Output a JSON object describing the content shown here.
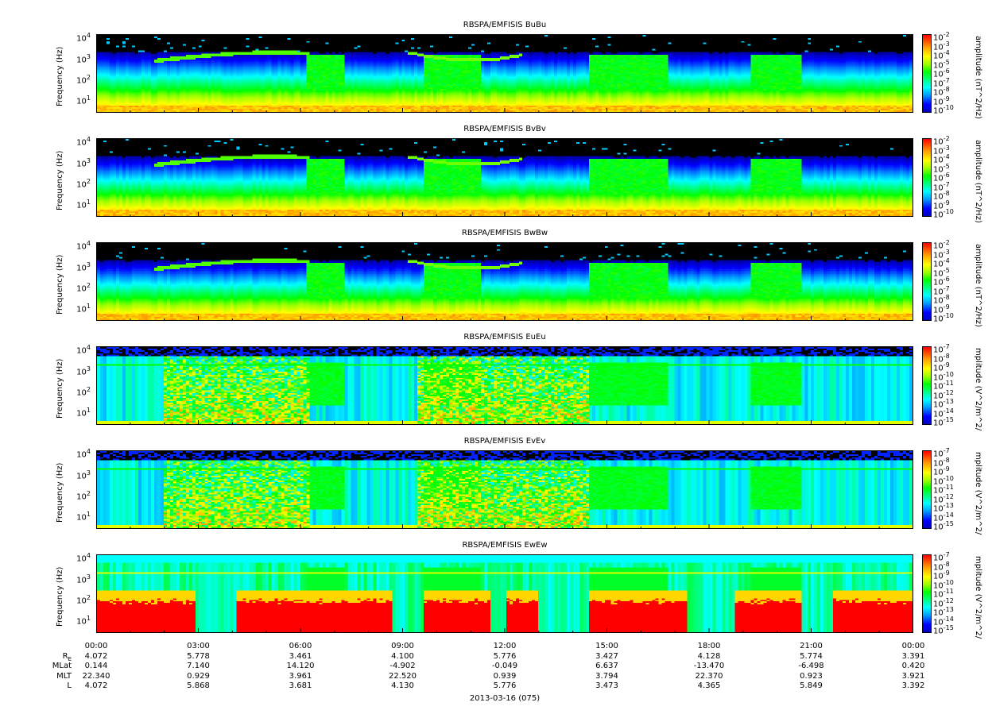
{
  "panels": [
    {
      "title": "RBSPA/EMFISIS  BuBu",
      "ylabel": "Frequency (Hz)",
      "cbar_label": "amplitude (nT^2/Hz)",
      "cbar_ticks": [
        "-2",
        "-3",
        "-4",
        "-5",
        "-6",
        "-7",
        "-8",
        "-9",
        "-10"
      ],
      "field": "B"
    },
    {
      "title": "RBSPA/EMFISIS  BvBv",
      "ylabel": "Frequency (Hz)",
      "cbar_label": "amplitude (nT^2/Hz)",
      "cbar_ticks": [
        "-2",
        "-3",
        "-4",
        "-5",
        "-6",
        "-7",
        "-8",
        "-9",
        "-10"
      ],
      "field": "B"
    },
    {
      "title": "RBSPA/EMFISIS  BwBw",
      "ylabel": "Frequency (Hz)",
      "cbar_label": "amplitude (nT^2/Hz)",
      "cbar_ticks": [
        "-2",
        "-3",
        "-4",
        "-5",
        "-6",
        "-7",
        "-8",
        "-9",
        "-10"
      ],
      "field": "B"
    },
    {
      "title": "RBSPA/EMFISIS  EuEu",
      "ylabel": "Frequency (Hz)",
      "cbar_label": "mplitude (V^2/m^2/",
      "cbar_ticks": [
        "-7",
        "-8",
        "-9",
        "-10",
        "-11",
        "-12",
        "-13",
        "-14",
        "-15"
      ],
      "field": "E"
    },
    {
      "title": "RBSPA/EMFISIS  EvEv",
      "ylabel": "Frequency (Hz)",
      "cbar_label": "mplitude (V^2/m^2/",
      "cbar_ticks": [
        "-7",
        "-8",
        "-9",
        "-10",
        "-11",
        "-12",
        "-13",
        "-14",
        "-15"
      ],
      "field": "E"
    },
    {
      "title": "RBSPA/EMFISIS  EwEw",
      "ylabel": "Frequency (Hz)",
      "cbar_label": "mplitude (V^2/m^2/",
      "cbar_ticks": [
        "-7",
        "-8",
        "-9",
        "-10",
        "-11",
        "-12",
        "-13",
        "-14",
        "-15"
      ],
      "field": "Ew"
    }
  ],
  "y_ticks": [
    "4",
    "3",
    "2",
    "1"
  ],
  "x_ticks": [
    "00:00",
    "03:00",
    "06:00",
    "09:00",
    "12:00",
    "15:00",
    "18:00",
    "21:00",
    "00:00"
  ],
  "ephemeris": {
    "labels": [
      "R",
      "MLat",
      "MLT",
      "L"
    ],
    "re_subscript": "E",
    "rows": [
      [
        "4.072",
        "5.778",
        "3.461",
        "4.100",
        "5.776",
        "3.427",
        "4.128",
        "5.774",
        "3.391"
      ],
      [
        "0.144",
        "7.140",
        "14.120",
        "-4.902",
        "-0.049",
        "6.637",
        "-13.470",
        "-6.498",
        "0.420"
      ],
      [
        "22.340",
        "0.929",
        "3.961",
        "22.520",
        "0.939",
        "3.794",
        "22.370",
        "0.923",
        "3.921"
      ],
      [
        "4.072",
        "5.868",
        "3.681",
        "4.130",
        "5.776",
        "3.473",
        "4.365",
        "5.849",
        "3.392"
      ]
    ]
  },
  "date": "2013-03-16 (075)",
  "chart_data": [
    {
      "type": "heatmap",
      "title": "RBSPA/EMFISIS  BuBu",
      "ylabel": "Frequency (Hz)",
      "y_scale": "log",
      "ylim": [
        2,
        10000
      ],
      "x": [
        "00:00",
        "03:00",
        "06:00",
        "09:00",
        "12:00",
        "15:00",
        "18:00",
        "21:00",
        "00:00"
      ],
      "colorbar": {
        "label": "amplitude (nT^2/Hz)",
        "scale": "log",
        "range": [
          1e-10,
          0.01
        ]
      }
    },
    {
      "type": "heatmap",
      "title": "RBSPA/EMFISIS  BvBv",
      "ylabel": "Frequency (Hz)",
      "y_scale": "log",
      "ylim": [
        2,
        10000
      ],
      "x": [
        "00:00",
        "03:00",
        "06:00",
        "09:00",
        "12:00",
        "15:00",
        "18:00",
        "21:00",
        "00:00"
      ],
      "colorbar": {
        "label": "amplitude (nT^2/Hz)",
        "scale": "log",
        "range": [
          1e-10,
          0.01
        ]
      }
    },
    {
      "type": "heatmap",
      "title": "RBSPA/EMFISIS  BwBw",
      "ylabel": "Frequency (Hz)",
      "y_scale": "log",
      "ylim": [
        2,
        10000
      ],
      "x": [
        "00:00",
        "03:00",
        "06:00",
        "09:00",
        "12:00",
        "15:00",
        "18:00",
        "21:00",
        "00:00"
      ],
      "colorbar": {
        "label": "amplitude (nT^2/Hz)",
        "scale": "log",
        "range": [
          1e-10,
          0.01
        ]
      }
    },
    {
      "type": "heatmap",
      "title": "RBSPA/EMFISIS  EuEu",
      "ylabel": "Frequency (Hz)",
      "y_scale": "log",
      "ylim": [
        2,
        10000
      ],
      "x": [
        "00:00",
        "03:00",
        "06:00",
        "09:00",
        "12:00",
        "15:00",
        "18:00",
        "21:00",
        "00:00"
      ],
      "colorbar": {
        "label": "mplitude (V^2/m^2/",
        "scale": "log",
        "range": [
          1e-15,
          1e-07
        ]
      }
    },
    {
      "type": "heatmap",
      "title": "RBSPA/EMFISIS  EvEv",
      "ylabel": "Frequency (Hz)",
      "y_scale": "log",
      "ylim": [
        2,
        10000
      ],
      "x": [
        "00:00",
        "03:00",
        "06:00",
        "09:00",
        "12:00",
        "15:00",
        "18:00",
        "21:00",
        "00:00"
      ],
      "colorbar": {
        "label": "mplitude (V^2/m^2/",
        "scale": "log",
        "range": [
          1e-15,
          1e-07
        ]
      }
    },
    {
      "type": "heatmap",
      "title": "RBSPA/EMFISIS  EwEw",
      "ylabel": "Frequency (Hz)",
      "y_scale": "log",
      "ylim": [
        2,
        10000
      ],
      "x": [
        "00:00",
        "03:00",
        "06:00",
        "09:00",
        "12:00",
        "15:00",
        "18:00",
        "21:00",
        "00:00"
      ],
      "colorbar": {
        "label": "mplitude (V^2/m^2/",
        "scale": "log",
        "range": [
          1e-15,
          1e-07
        ]
      }
    }
  ]
}
